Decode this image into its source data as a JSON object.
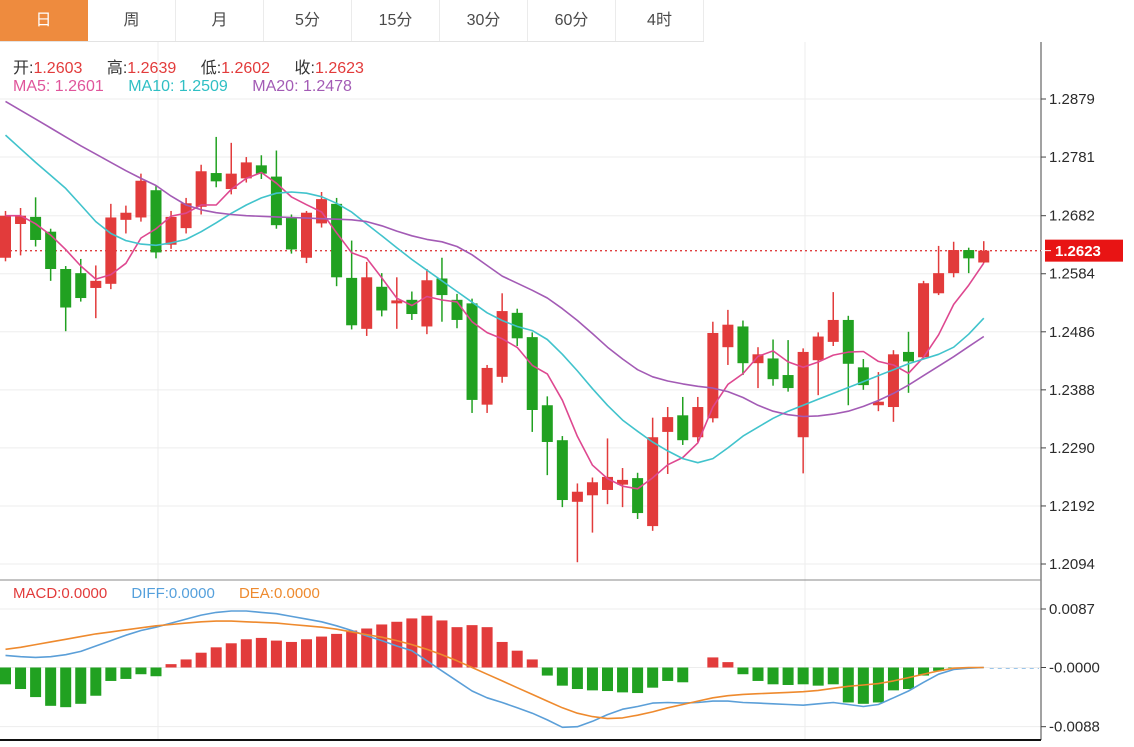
{
  "tabs": {
    "items": [
      {
        "label": "日",
        "name": "tab-day",
        "active": true
      },
      {
        "label": "周",
        "name": "tab-week",
        "active": false
      },
      {
        "label": "月",
        "name": "tab-month",
        "active": false
      },
      {
        "label": "5分",
        "name": "tab-5min",
        "active": false
      },
      {
        "label": "15分",
        "name": "tab-15min",
        "active": false
      },
      {
        "label": "30分",
        "name": "tab-30min",
        "active": false
      },
      {
        "label": "60分",
        "name": "tab-60min",
        "active": false
      },
      {
        "label": "4时",
        "name": "tab-4hour",
        "active": false
      }
    ]
  },
  "legend": {
    "ohlc": [
      {
        "label": "开:",
        "value": "1.2603",
        "color": "#e23b3b"
      },
      {
        "label": "高:",
        "value": "1.2639",
        "color": "#e23b3b"
      },
      {
        "label": "低:",
        "value": "1.2602",
        "color": "#e23b3b"
      },
      {
        "label": "收:",
        "value": "1.2623",
        "color": "#e23b3b"
      }
    ],
    "ma": [
      {
        "label": "MA5:",
        "value": "1.2601",
        "color": "#e0559b"
      },
      {
        "label": "MA10:",
        "value": "1.2509",
        "color": "#2fbfc4"
      },
      {
        "label": "MA20:",
        "value": "1.2478",
        "color": "#a35bb5"
      }
    ],
    "macd": [
      {
        "label": "MACD:",
        "value": "0.0000",
        "color": "#e23b3b"
      },
      {
        "label": "DIFF:",
        "value": "0.0000",
        "color": "#55a0dc"
      },
      {
        "label": "DEA:",
        "value": "0.0000",
        "color": "#ee8a2e"
      }
    ]
  },
  "price_axis": {
    "ticks": [
      "1.2879",
      "1.2781",
      "1.2682",
      "1.2584",
      "1.2486",
      "1.2388",
      "1.2290",
      "1.2192",
      "1.2094"
    ]
  },
  "macd_axis": {
    "ticks": [
      "0.0087",
      "-0.0000",
      "-0.0088"
    ]
  },
  "last_price_tag": "1.2623",
  "chart_data": {
    "type": "candlestick+macd",
    "title": "",
    "convention": "red = up candle, green = down candle",
    "price_axis_range": [
      1.207,
      1.2975
    ],
    "macd_axis_range": [
      -0.011,
      0.0133
    ],
    "grid": {
      "h_ticks_price": [
        1.2879,
        1.2781,
        1.2682,
        1.2584,
        1.2486,
        1.2388,
        1.229,
        1.2192,
        1.2094
      ],
      "h_ticks_macd": [
        0.0087,
        -0.0,
        -0.0088
      ],
      "v_gridlines_x": [
        158,
        805
      ]
    },
    "candles": [
      [
        1.2611,
        1.269,
        1.2605,
        1.2682
      ],
      [
        1.2668,
        1.2695,
        1.2615,
        1.2682
      ],
      [
        1.268,
        1.2713,
        1.263,
        1.2641
      ],
      [
        1.2655,
        1.266,
        1.2572,
        1.2592
      ],
      [
        1.2592,
        1.2597,
        1.2487,
        1.2527
      ],
      [
        1.2585,
        1.2609,
        1.2537,
        1.2543
      ],
      [
        1.256,
        1.2598,
        1.2509,
        1.2572
      ],
      [
        1.2567,
        1.2702,
        1.2558,
        1.2679
      ],
      [
        1.2675,
        1.2699,
        1.2652,
        1.2687
      ],
      [
        1.2679,
        1.2753,
        1.2672,
        1.2741
      ],
      [
        1.2725,
        1.2732,
        1.261,
        1.262
      ],
      [
        1.2633,
        1.269,
        1.2626,
        1.268
      ],
      [
        1.2661,
        1.2712,
        1.2652,
        1.2703
      ],
      [
        1.2697,
        1.2768,
        1.2684,
        1.2757
      ],
      [
        1.2754,
        1.2815,
        1.273,
        1.274
      ],
      [
        1.2727,
        1.2805,
        1.2718,
        1.2753
      ],
      [
        1.2745,
        1.2781,
        1.2738,
        1.2772
      ],
      [
        1.2767,
        1.2784,
        1.2744,
        1.2753
      ],
      [
        1.2748,
        1.2792,
        1.266,
        1.2666
      ],
      [
        1.2678,
        1.2684,
        1.2618,
        1.2625
      ],
      [
        1.2611,
        1.269,
        1.2602,
        1.2687
      ],
      [
        1.2669,
        1.2722,
        1.2662,
        1.271
      ],
      [
        1.2702,
        1.2712,
        1.2563,
        1.2578
      ],
      [
        1.2577,
        1.264,
        1.249,
        1.2497
      ],
      [
        1.2491,
        1.2604,
        1.2479,
        1.2578
      ],
      [
        1.2562,
        1.2585,
        1.2512,
        1.2522
      ],
      [
        1.2534,
        1.2578,
        1.2491,
        1.2539
      ],
      [
        1.254,
        1.2554,
        1.2506,
        1.2516
      ],
      [
        1.2495,
        1.2592,
        1.2482,
        1.2573
      ],
      [
        1.2576,
        1.2611,
        1.2503,
        1.2548
      ],
      [
        1.254,
        1.255,
        1.2492,
        1.2506
      ],
      [
        1.2534,
        1.2542,
        1.2349,
        1.2371
      ],
      [
        1.2363,
        1.243,
        1.2349,
        1.2425
      ],
      [
        1.241,
        1.2551,
        1.24,
        1.2521
      ],
      [
        1.2518,
        1.2525,
        1.2462,
        1.2475
      ],
      [
        1.2477,
        1.2485,
        1.2317,
        1.2354
      ],
      [
        1.2362,
        1.2377,
        1.2244,
        1.23
      ],
      [
        1.2303,
        1.231,
        1.219,
        1.2202
      ],
      [
        1.2199,
        1.223,
        1.2097,
        1.2216
      ],
      [
        1.221,
        1.224,
        1.2147,
        1.2232
      ],
      [
        1.2219,
        1.2306,
        1.2195,
        1.2241
      ],
      [
        1.2228,
        1.2256,
        1.219,
        1.2236
      ],
      [
        1.2239,
        1.2248,
        1.217,
        1.218
      ],
      [
        1.2158,
        1.2341,
        1.215,
        1.2308
      ],
      [
        1.2317,
        1.2359,
        1.2246,
        1.2342
      ],
      [
        1.2345,
        1.2376,
        1.2295,
        1.2303
      ],
      [
        1.2308,
        1.2376,
        1.23,
        1.2359
      ],
      [
        1.234,
        1.2503,
        1.2333,
        1.2484
      ],
      [
        1.246,
        1.2523,
        1.243,
        1.2498
      ],
      [
        1.2495,
        1.2505,
        1.2413,
        1.2433
      ],
      [
        1.2433,
        1.246,
        1.2391,
        1.2448
      ],
      [
        1.2441,
        1.2473,
        1.2395,
        1.2406
      ],
      [
        1.2413,
        1.2472,
        1.2385,
        1.2391
      ],
      [
        1.2308,
        1.2458,
        1.2247,
        1.2452
      ],
      [
        1.2438,
        1.2485,
        1.2379,
        1.2478
      ],
      [
        1.2469,
        1.2553,
        1.2462,
        1.2506
      ],
      [
        1.2506,
        1.2513,
        1.2362,
        1.2432
      ],
      [
        1.2426,
        1.244,
        1.2388,
        1.2396
      ],
      [
        1.2362,
        1.2418,
        1.2352,
        1.2368
      ],
      [
        1.2359,
        1.2455,
        1.2334,
        1.2448
      ],
      [
        1.2452,
        1.2486,
        1.2383,
        1.2436
      ],
      [
        1.2443,
        1.2572,
        1.244,
        1.2568
      ],
      [
        1.2551,
        1.2631,
        1.2548,
        1.2585
      ],
      [
        1.2585,
        1.2638,
        1.2578,
        1.2624
      ],
      [
        1.2624,
        1.2628,
        1.2585,
        1.261
      ],
      [
        1.2603,
        1.2639,
        1.2602,
        1.2623
      ]
    ],
    "ma10": [
      1.2818,
      1.2795,
      1.2772,
      1.275,
      1.2728,
      1.27,
      1.2672,
      1.2652,
      1.264,
      1.2634,
      1.2632,
      1.2636,
      1.2642,
      1.2655,
      1.267,
      1.2686,
      1.27,
      1.2712,
      1.272,
      1.2722,
      1.272,
      1.2714,
      1.2703,
      1.2688,
      1.2668,
      1.2648,
      1.2628,
      1.2608,
      1.259,
      1.2572,
      1.2554,
      1.2536,
      1.2518,
      1.2505,
      1.2495,
      1.2488,
      1.2473,
      1.2448,
      1.242,
      1.239,
      1.2362,
      1.2337,
      1.2318,
      1.23,
      1.2285,
      1.2272,
      1.2265,
      1.2272,
      1.229,
      1.231,
      1.2325,
      1.234,
      1.2352,
      1.2362,
      1.2372,
      1.2382,
      1.2392,
      1.2402,
      1.2412,
      1.2422,
      1.2432,
      1.244,
      1.2448,
      1.246,
      1.2482,
      1.2509
    ],
    "ma20": [
      1.2875,
      1.286,
      1.2845,
      1.283,
      1.2815,
      1.28,
      1.2786,
      1.2772,
      1.2758,
      1.2745,
      1.2733,
      1.2715,
      1.27,
      1.2692,
      1.2687,
      1.2684,
      1.2682,
      1.2681,
      1.268,
      1.2679,
      1.2678,
      1.2677,
      1.2676,
      1.2675,
      1.2672,
      1.2665,
      1.2656,
      1.2648,
      1.2642,
      1.2638,
      1.263,
      1.2616,
      1.2598,
      1.258,
      1.2568,
      1.2556,
      1.2543,
      1.2525,
      1.2505,
      1.2483,
      1.246,
      1.244,
      1.2422,
      1.241,
      1.2403,
      1.2398,
      1.2394,
      1.2391,
      1.2385,
      1.2375,
      1.2362,
      1.2352,
      1.2346,
      1.2343,
      1.2344,
      1.2347,
      1.2352,
      1.236,
      1.237,
      1.2382,
      1.2396,
      1.2412,
      1.2428,
      1.2444,
      1.2461,
      1.2478
    ],
    "macd_hist": [
      -0.0025,
      -0.0032,
      -0.0044,
      -0.0057,
      -0.0059,
      -0.0054,
      -0.0042,
      -0.002,
      -0.0017,
      -0.001,
      -0.0013,
      0.0005,
      0.0012,
      0.0022,
      0.003,
      0.0036,
      0.0042,
      0.0044,
      0.004,
      0.0038,
      0.0042,
      0.0046,
      0.005,
      0.0055,
      0.0058,
      0.0064,
      0.0068,
      0.0073,
      0.0077,
      0.007,
      0.006,
      0.0063,
      0.006,
      0.0038,
      0.0025,
      0.0012,
      -0.0012,
      -0.0027,
      -0.0032,
      -0.0034,
      -0.0035,
      -0.0037,
      -0.0038,
      -0.003,
      -0.002,
      -0.0022,
      0.0,
      0.0015,
      0.0008,
      -0.001,
      -0.002,
      -0.0025,
      -0.0026,
      -0.0025,
      -0.0027,
      -0.0025,
      -0.0052,
      -0.0054,
      -0.0052,
      -0.0034,
      -0.0032,
      -0.0012,
      -0.0005,
      -0.0001,
      0.0,
      0.0
    ],
    "diff": [
      0.0018,
      0.0016,
      0.0015,
      0.0016,
      0.0019,
      0.0024,
      0.0032,
      0.004,
      0.0048,
      0.0055,
      0.006,
      0.0066,
      0.0072,
      0.0078,
      0.0082,
      0.0084,
      0.0084,
      0.0082,
      0.008,
      0.0076,
      0.0072,
      0.0068,
      0.0062,
      0.0055,
      0.0047,
      0.004,
      0.0032,
      0.0025,
      0.001,
      -0.0005,
      -0.002,
      -0.0035,
      -0.0045,
      -0.0052,
      -0.006,
      -0.0068,
      -0.0078,
      -0.0089,
      -0.0088,
      -0.008,
      -0.007,
      -0.0062,
      -0.0058,
      -0.0053,
      -0.0052,
      -0.0053,
      -0.0052,
      -0.005,
      -0.005,
      -0.0052,
      -0.0053,
      -0.0054,
      -0.0055,
      -0.0056,
      -0.0054,
      -0.0052,
      -0.0055,
      -0.0058,
      -0.0055,
      -0.0045,
      -0.0035,
      -0.0022,
      -0.001,
      -0.0003,
      -0.0001,
      0.0
    ],
    "dea": [
      0.0027,
      0.003,
      0.0034,
      0.0038,
      0.0042,
      0.0046,
      0.005,
      0.0053,
      0.0056,
      0.0059,
      0.0062,
      0.0064,
      0.0066,
      0.0068,
      0.0069,
      0.0069,
      0.0068,
      0.0067,
      0.0066,
      0.0064,
      0.0062,
      0.006,
      0.0057,
      0.0053,
      0.0049,
      0.0045,
      0.004,
      0.0034,
      0.0027,
      0.0019,
      0.001,
      0.0,
      -0.001,
      -0.002,
      -0.003,
      -0.004,
      -0.005,
      -0.006,
      -0.0068,
      -0.0073,
      -0.0076,
      -0.0075,
      -0.0071,
      -0.0066,
      -0.006,
      -0.0055,
      -0.005,
      -0.0045,
      -0.0042,
      -0.004,
      -0.0039,
      -0.0038,
      -0.0037,
      -0.0036,
      -0.0034,
      -0.0031,
      -0.0028,
      -0.0026,
      -0.0024,
      -0.002,
      -0.0015,
      -0.001,
      -0.0005,
      -0.0001,
      0.0,
      0.0
    ],
    "colors": {
      "up": "#e23b3b",
      "down": "#21a121",
      "ma5": "#de4890",
      "ma10": "#41c3cc",
      "ma20": "#a35bb5",
      "diff": "#5b9fd8",
      "dea": "#ee8a2e",
      "tag": "#e81414",
      "dotted": "#e04040",
      "grid": "#ededed",
      "axis": "#444444",
      "accent_tab": "#ee8b3e"
    }
  }
}
